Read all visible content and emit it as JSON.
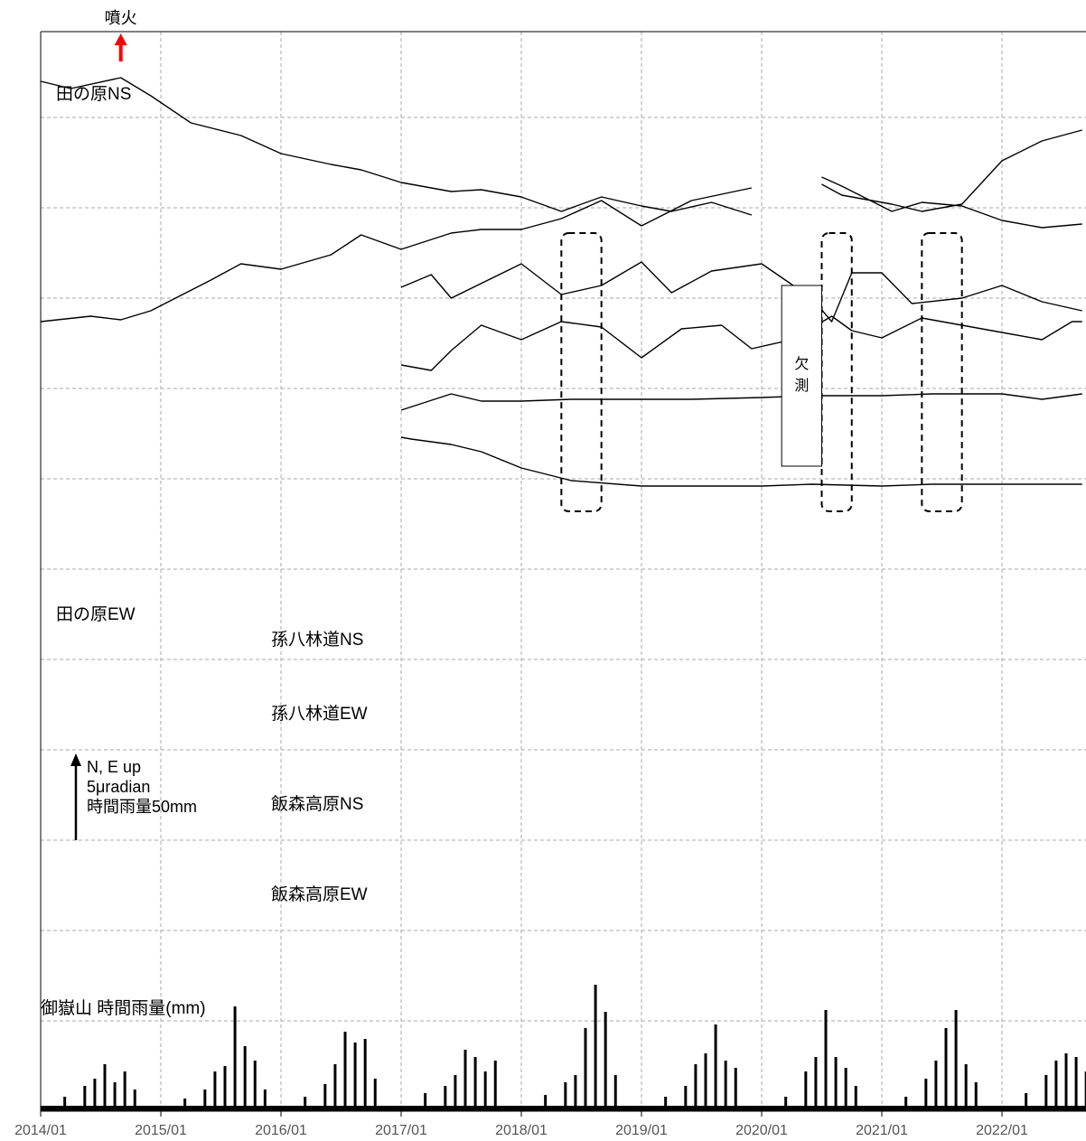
{
  "chart_data": {
    "type": "line",
    "x_ticks": [
      "2014/01",
      "2015/01",
      "2016/01",
      "2017/01",
      "2018/01",
      "2019/01",
      "2020/01",
      "2021/01",
      "2022/01"
    ],
    "x_range": [
      "2014/01",
      "2022/09"
    ],
    "grid": true,
    "annotations": {
      "eruption": {
        "label": "噴火",
        "date": "2014/09",
        "color": "#ff0000"
      },
      "missing": {
        "label": [
          "欠",
          "測"
        ],
        "from": "2020/03",
        "to": "2020/07"
      },
      "scale": {
        "direction": "N, E up",
        "tilt": "5μradian",
        "rain": "時間雨量50mm"
      },
      "highlight_periods": [
        [
          "2018/05",
          "2018/09"
        ],
        [
          "2020/07",
          "2020/10"
        ],
        [
          "2021/05",
          "2021/09"
        ]
      ]
    },
    "series": [
      {
        "name": "田の原NS",
        "x": [
          "2014/01",
          "2014/04",
          "2014/09",
          "2014/12",
          "2015/04",
          "2015/09",
          "2016/01",
          "2016/06",
          "2016/09",
          "2017/01",
          "2017/06",
          "2017/09",
          "2018/01",
          "2018/05",
          "2018/09",
          "2019/01",
          "2019/04",
          "2019/08",
          "2019/12",
          "2020/03",
          "2020/07",
          "2020/09",
          "2021/02",
          "2021/05",
          "2021/09",
          "2022/01",
          "2022/05",
          "2022/09"
        ],
        "y": [
          2.0,
          1.6,
          2.2,
          1.2,
          -0.3,
          -1.0,
          -2.0,
          -2.6,
          -2.9,
          -3.6,
          -4.1,
          -4.0,
          -4.4,
          -5.2,
          -4.4,
          -4.9,
          -5.2,
          -4.7,
          -5.4,
          null,
          -3.3,
          -3.8,
          -5.2,
          -4.7,
          -4.9,
          -5.7,
          -6.1,
          -5.9
        ]
      },
      {
        "name": "田の原EW",
        "x": [
          "2014/01",
          "2014/06",
          "2014/09",
          "2014/12",
          "2015/06",
          "2015/09",
          "2016/01",
          "2016/06",
          "2016/09",
          "2017/01",
          "2017/06",
          "2017/09",
          "2018/01",
          "2018/05",
          "2018/09",
          "2019/01",
          "2019/06",
          "2019/12",
          "2020/03",
          "2020/07",
          "2020/09",
          "2021/02",
          "2021/05",
          "2021/09",
          "2022/01",
          "2022/05",
          "2022/09"
        ],
        "y": [
          -11.3,
          -11.0,
          -11.2,
          -10.7,
          -9.0,
          -8.1,
          -8.4,
          -7.6,
          -6.5,
          -7.3,
          -6.4,
          -6.2,
          -6.2,
          -5.6,
          -4.6,
          -6.0,
          -4.6,
          -3.9,
          null,
          -3.7,
          -4.3,
          -4.8,
          -5.2,
          -4.8,
          -2.4,
          -1.3,
          -0.7
        ]
      },
      {
        "name": "孫八林道NS",
        "x": [
          "2017/01",
          "2017/04",
          "2017/06",
          "2018/01",
          "2018/05",
          "2018/09",
          "2019/01",
          "2019/04",
          "2019/08",
          "2020/01",
          "2020/06",
          "2020/08",
          "2020/10",
          "2021/01",
          "2021/04",
          "2021/09",
          "2022/01",
          "2022/05",
          "2022/09"
        ],
        "y": [
          -9.4,
          -8.7,
          -10.0,
          -8.1,
          -9.8,
          -9.3,
          -8.0,
          -9.7,
          -8.5,
          -8.1,
          -10.0,
          -11.3,
          -8.6,
          -8.6,
          -10.3,
          -10.0,
          -9.3,
          -10.2,
          -10.7
        ]
      },
      {
        "name": "孫八林道EW",
        "x": [
          "2017/01",
          "2017/04",
          "2017/06",
          "2017/09",
          "2018/01",
          "2018/05",
          "2018/09",
          "2019/01",
          "2019/05",
          "2019/09",
          "2019/12",
          "2020/04",
          "2020/08",
          "2020/10",
          "2021/01",
          "2021/05",
          "2021/09",
          "2022/01",
          "2022/05",
          "2022/08",
          "2022/09"
        ],
        "y": [
          -13.7,
          -14.0,
          -12.9,
          -11.5,
          -12.3,
          -11.3,
          -11.6,
          -13.3,
          -11.7,
          -11.5,
          -12.8,
          -12.3,
          -11.0,
          -11.8,
          -12.2,
          -11.1,
          -11.5,
          -11.9,
          -12.3,
          -11.3,
          -11.3
        ]
      },
      {
        "name": "飯森高原NS",
        "x": [
          "2017/01",
          "2017/06",
          "2017/09",
          "2018/01",
          "2018/06",
          "2019/01",
          "2019/06",
          "2020/01",
          "2020/06",
          "2021/01",
          "2021/06",
          "2022/01",
          "2022/05",
          "2022/09"
        ],
        "y": [
          -16.2,
          -15.3,
          -15.7,
          -15.7,
          -15.6,
          -15.6,
          -15.6,
          -15.5,
          -15.4,
          -15.4,
          -15.3,
          -15.3,
          -15.6,
          -15.3
        ]
      },
      {
        "name": "飯森高原EW",
        "x": [
          "2017/01",
          "2017/02",
          "2017/06",
          "2017/09",
          "2018/01",
          "2018/06",
          "2019/01",
          "2019/06",
          "2020/01",
          "2020/06",
          "2021/01",
          "2021/06",
          "2022/01",
          "2022/05",
          "2022/09"
        ],
        "y": [
          -17.7,
          -17.8,
          -18.1,
          -18.5,
          -19.4,
          -20.1,
          -20.4,
          -20.4,
          -20.4,
          -20.3,
          -20.4,
          -20.3,
          -20.3,
          -20.3,
          -20.3
        ]
      },
      {
        "name": "御嶽山 時間雨量(mm)",
        "type": "bar",
        "bars": [
          {
            "x": "2014/03",
            "y": 8
          },
          {
            "x": "2014/05",
            "y": 14
          },
          {
            "x": "2014/06",
            "y": 18
          },
          {
            "x": "2014/07",
            "y": 26
          },
          {
            "x": "2014/08",
            "y": 16
          },
          {
            "x": "2014/09",
            "y": 22
          },
          {
            "x": "2014/10",
            "y": 12
          },
          {
            "x": "2015/03",
            "y": 7
          },
          {
            "x": "2015/05",
            "y": 12
          },
          {
            "x": "2015/06",
            "y": 22
          },
          {
            "x": "2015/07",
            "y": 25
          },
          {
            "x": "2015/08",
            "y": 58
          },
          {
            "x": "2015/09",
            "y": 36
          },
          {
            "x": "2015/10",
            "y": 28
          },
          {
            "x": "2015/11",
            "y": 12
          },
          {
            "x": "2016/03",
            "y": 8
          },
          {
            "x": "2016/05",
            "y": 15
          },
          {
            "x": "2016/06",
            "y": 26
          },
          {
            "x": "2016/07",
            "y": 44
          },
          {
            "x": "2016/08",
            "y": 38
          },
          {
            "x": "2016/09",
            "y": 40
          },
          {
            "x": "2016/10",
            "y": 18
          },
          {
            "x": "2017/03",
            "y": 10
          },
          {
            "x": "2017/05",
            "y": 14
          },
          {
            "x": "2017/06",
            "y": 20
          },
          {
            "x": "2017/07",
            "y": 34
          },
          {
            "x": "2017/08",
            "y": 30
          },
          {
            "x": "2017/09",
            "y": 22
          },
          {
            "x": "2017/10",
            "y": 28
          },
          {
            "x": "2018/03",
            "y": 9
          },
          {
            "x": "2018/05",
            "y": 16
          },
          {
            "x": "2018/06",
            "y": 20
          },
          {
            "x": "2018/07",
            "y": 46
          },
          {
            "x": "2018/08",
            "y": 70
          },
          {
            "x": "2018/09",
            "y": 55
          },
          {
            "x": "2018/10",
            "y": 20
          },
          {
            "x": "2019/03",
            "y": 8
          },
          {
            "x": "2019/05",
            "y": 14
          },
          {
            "x": "2019/06",
            "y": 26
          },
          {
            "x": "2019/07",
            "y": 32
          },
          {
            "x": "2019/08",
            "y": 48
          },
          {
            "x": "2019/09",
            "y": 28
          },
          {
            "x": "2019/10",
            "y": 24
          },
          {
            "x": "2020/03",
            "y": 8
          },
          {
            "x": "2020/05",
            "y": 22
          },
          {
            "x": "2020/06",
            "y": 30
          },
          {
            "x": "2020/07",
            "y": 56
          },
          {
            "x": "2020/08",
            "y": 30
          },
          {
            "x": "2020/09",
            "y": 24
          },
          {
            "x": "2020/10",
            "y": 14
          },
          {
            "x": "2021/03",
            "y": 8
          },
          {
            "x": "2021/05",
            "y": 18
          },
          {
            "x": "2021/06",
            "y": 28
          },
          {
            "x": "2021/07",
            "y": 46
          },
          {
            "x": "2021/08",
            "y": 56
          },
          {
            "x": "2021/09",
            "y": 26
          },
          {
            "x": "2021/10",
            "y": 16
          },
          {
            "x": "2022/03",
            "y": 10
          },
          {
            "x": "2022/05",
            "y": 20
          },
          {
            "x": "2022/06",
            "y": 28
          },
          {
            "x": "2022/07",
            "y": 32
          },
          {
            "x": "2022/08",
            "y": 30
          },
          {
            "x": "2022/09",
            "y": 22
          }
        ]
      }
    ]
  }
}
